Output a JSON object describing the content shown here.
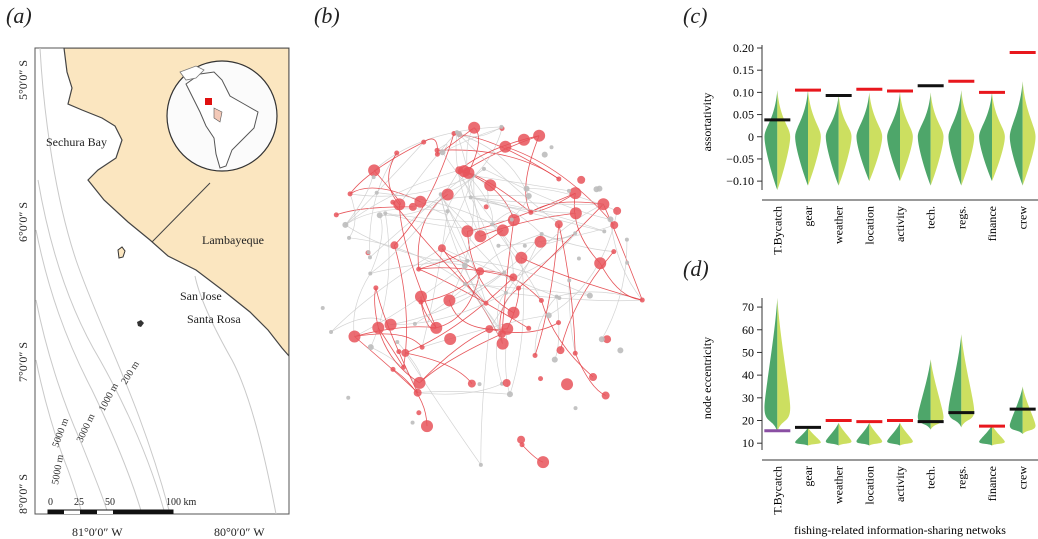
{
  "panels": {
    "a": {
      "label": "(a)"
    },
    "b": {
      "label": "(b)"
    },
    "c": {
      "label": "(c)"
    },
    "d": {
      "label": "(d)"
    }
  },
  "map": {
    "lat_labels": [
      "5°0′0″ S",
      "6°0′0″ S",
      "7°0′0″ S",
      "8°0′0″ S"
    ],
    "lon_labels": [
      "81°0′0″ W",
      "80°0′0″ W"
    ],
    "places": {
      "bay": "Sechura Bay",
      "region": "Lambayeque",
      "town1": "San Jose",
      "town2": "Santa Rosa"
    },
    "contours": [
      "200 m",
      "1000 m",
      "3000 m",
      "5000 m",
      "5000 m"
    ],
    "scalebar": [
      "0",
      "25",
      "50",
      "100 km"
    ],
    "colors": {
      "land": "#fbe6c0",
      "sea": "#ffffff",
      "coast": "#333333",
      "inset_marker": "#e01010"
    }
  },
  "network": {
    "colors": {
      "red_edge": "#e2373d",
      "grey_edge": "#c8c8c8",
      "red_node": "#e8545b",
      "grey_node": "#bdbdbd"
    }
  },
  "chart_data": [
    {
      "type": "violin",
      "panel": "c",
      "ylabel": "assortativity",
      "ylim": [
        -0.12,
        0.2
      ],
      "yticks": [
        "0.20",
        "0.15",
        "0.10",
        "0.05",
        "0",
        "−0.05",
        "−0.10"
      ],
      "categories": [
        "T.Bycatch",
        "gear",
        "weather",
        "location",
        "activity",
        "tech.",
        "regs.",
        "finance",
        "crew"
      ],
      "observed": [
        0.038,
        0.105,
        0.093,
        0.107,
        0.103,
        0.115,
        0.125,
        0.1,
        0.19
      ],
      "observed_colors": [
        "#111111",
        "#e8171d",
        "#111111",
        "#e8171d",
        "#e8171d",
        "#111111",
        "#e8171d",
        "#e8171d",
        "#e8171d"
      ],
      "null_range": [
        [
          -0.12,
          0.105
        ],
        [
          -0.11,
          0.105
        ],
        [
          -0.11,
          0.095
        ],
        [
          -0.1,
          0.1
        ],
        [
          -0.1,
          0.1
        ],
        [
          -0.11,
          0.1
        ],
        [
          -0.11,
          0.105
        ],
        [
          -0.1,
          0.1
        ],
        [
          -0.11,
          0.125
        ]
      ]
    },
    {
      "type": "violin",
      "panel": "d",
      "ylabel": "node eccentricity",
      "xlabel": "fishing-related information-sharing netwoks",
      "ylim": [
        7,
        74
      ],
      "yticks": [
        "70",
        "60",
        "50",
        "40",
        "30",
        "20",
        "10"
      ],
      "categories": [
        "T.Bycatch",
        "gear",
        "weather",
        "location",
        "activity",
        "tech.",
        "regs.",
        "finance",
        "crew"
      ],
      "observed": [
        15.5,
        17,
        20,
        19.5,
        20,
        19.5,
        23.5,
        17.5,
        25
      ],
      "observed_colors": [
        "#8a4fa3",
        "#111111",
        "#e8171d",
        "#e8171d",
        "#e8171d",
        "#111111",
        "#111111",
        "#e8171d",
        "#111111"
      ],
      "null_range": [
        [
          15,
          74
        ],
        [
          9,
          17
        ],
        [
          9,
          19
        ],
        [
          9,
          19
        ],
        [
          9,
          19
        ],
        [
          16,
          47
        ],
        [
          17,
          58
        ],
        [
          9,
          18
        ],
        [
          14,
          35
        ]
      ]
    }
  ]
}
